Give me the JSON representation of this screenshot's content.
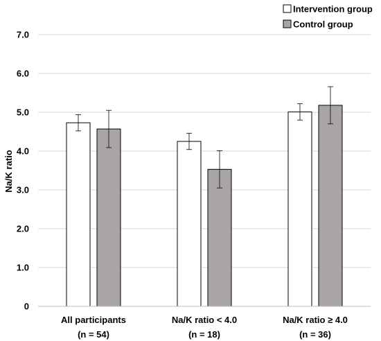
{
  "chart_data": {
    "type": "bar",
    "title": "",
    "xlabel": "",
    "ylabel": "Na/K ratio",
    "ylim": [
      0,
      7
    ],
    "yticks": [
      "0",
      "1.0",
      "2.0",
      "3.0",
      "4.0",
      "5.0",
      "6.0",
      "7.0"
    ],
    "grid": true,
    "legend": "top-right",
    "categories": [
      {
        "line1": "All participants",
        "line2": "(n = 54)"
      },
      {
        "line1": "Na/K ratio < 4.0",
        "line2": "(n = 18)"
      },
      {
        "line1": "Na/K ratio ≥ 4.0",
        "line2": "(n = 36)"
      }
    ],
    "series": [
      {
        "name": "Intervention group",
        "color": "#ffffff",
        "values": [
          4.73,
          4.25,
          5.01
        ],
        "errors": [
          0.21,
          0.21,
          0.21
        ]
      },
      {
        "name": "Control group",
        "color": "#aaa5a5",
        "values": [
          4.57,
          3.53,
          5.18
        ],
        "errors": [
          0.48,
          0.48,
          0.48
        ]
      }
    ]
  }
}
